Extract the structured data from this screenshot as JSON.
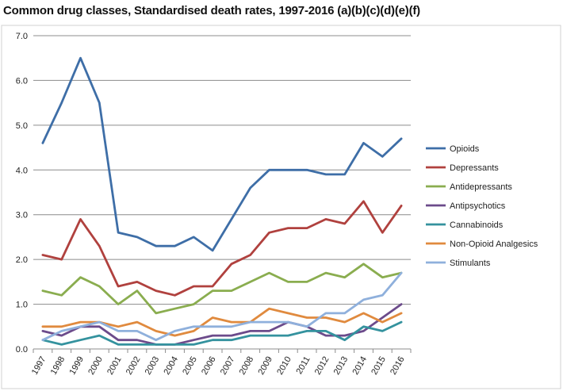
{
  "chart_data": {
    "type": "line",
    "title": "Common drug classes, Standardised death rates, 1997-2016 (a)(b)(c)(d)(e)(f)",
    "xlabel": "",
    "ylabel": "",
    "ylim": [
      0,
      7
    ],
    "y_ticks": [
      "0.0",
      "1.0",
      "2.0",
      "3.0",
      "4.0",
      "5.0",
      "6.0",
      "7.0"
    ],
    "grid": "horizontal",
    "legend_position": "right",
    "x": [
      "1997",
      "1998",
      "1999",
      "2000",
      "2001",
      "2002",
      "2003",
      "2004",
      "2005",
      "2006",
      "2007",
      "2008",
      "2009",
      "2010",
      "2011",
      "2012",
      "2013",
      "2014",
      "2015",
      "2016"
    ],
    "series": [
      {
        "name": "Opioids",
        "color": "#3e6ea7",
        "values": [
          4.6,
          5.5,
          6.5,
          5.5,
          2.6,
          2.5,
          2.3,
          2.3,
          2.5,
          2.2,
          2.9,
          3.6,
          4.0,
          4.0,
          4.0,
          3.9,
          3.9,
          4.6,
          4.3,
          4.7
        ]
      },
      {
        "name": "Depressants",
        "color": "#b0413e",
        "values": [
          2.1,
          2.0,
          2.9,
          2.3,
          1.4,
          1.5,
          1.3,
          1.2,
          1.4,
          1.4,
          1.9,
          2.1,
          2.6,
          2.7,
          2.7,
          2.9,
          2.8,
          3.3,
          2.6,
          3.2
        ]
      },
      {
        "name": "Antidepressants",
        "color": "#8aad4f",
        "values": [
          1.3,
          1.2,
          1.6,
          1.4,
          1.0,
          1.3,
          0.8,
          0.9,
          1.0,
          1.3,
          1.3,
          1.5,
          1.7,
          1.5,
          1.5,
          1.7,
          1.6,
          1.9,
          1.6,
          1.7
        ]
      },
      {
        "name": "Antipsychotics",
        "color": "#6c4b8b",
        "values": [
          0.4,
          0.3,
          0.5,
          0.5,
          0.2,
          0.2,
          0.1,
          0.1,
          0.2,
          0.3,
          0.3,
          0.4,
          0.4,
          0.6,
          0.5,
          0.3,
          0.3,
          0.4,
          0.7,
          1.0
        ]
      },
      {
        "name": "Cannabinoids",
        "color": "#34929e",
        "values": [
          0.2,
          0.1,
          0.2,
          0.3,
          0.1,
          0.1,
          0.1,
          0.1,
          0.1,
          0.2,
          0.2,
          0.3,
          0.3,
          0.3,
          0.4,
          0.4,
          0.2,
          0.5,
          0.4,
          0.6
        ]
      },
      {
        "name": "Non-Opioid Analgesics",
        "color": "#e08a3e",
        "values": [
          0.5,
          0.5,
          0.6,
          0.6,
          0.5,
          0.6,
          0.4,
          0.3,
          0.4,
          0.7,
          0.6,
          0.6,
          0.9,
          0.8,
          0.7,
          0.7,
          0.6,
          0.8,
          0.6,
          0.8
        ]
      },
      {
        "name": "Stimulants",
        "color": "#8fb0dc",
        "values": [
          0.2,
          0.4,
          0.5,
          0.6,
          0.4,
          0.4,
          0.2,
          0.4,
          0.5,
          0.5,
          0.5,
          0.6,
          0.6,
          0.6,
          0.5,
          0.8,
          0.8,
          1.1,
          1.2,
          1.7
        ]
      }
    ]
  }
}
